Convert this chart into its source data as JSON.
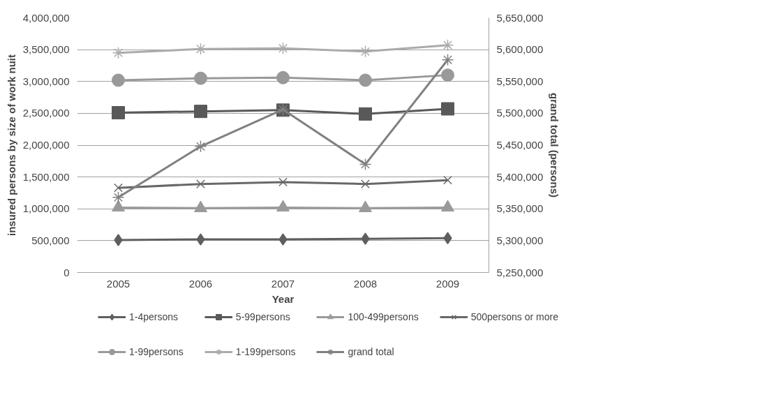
{
  "chart_data": {
    "type": "line",
    "xlabel": "Year",
    "ylabel": "insured persons by size of work nuit",
    "y2label": "grand total (persons)",
    "categories": [
      "2005",
      "2006",
      "2007",
      "2008",
      "2009"
    ],
    "series": [
      {
        "name": "1-4persons",
        "color": "#5f5f5f",
        "marker": "diamond",
        "values": [
          510000,
          520000,
          520000,
          530000,
          540000
        ]
      },
      {
        "name": "5-99persons",
        "color": "#595959",
        "marker": "square",
        "values": [
          2510000,
          2530000,
          2550000,
          2490000,
          2570000
        ]
      },
      {
        "name": "100-499persons",
        "color": "#9a9a9a",
        "marker": "triangle",
        "values": [
          1020000,
          1010000,
          1020000,
          1010000,
          1020000
        ]
      },
      {
        "name": "500persons or more",
        "color": "#686868",
        "marker": "x",
        "values": [
          1330000,
          1390000,
          1420000,
          1390000,
          1450000
        ]
      },
      {
        "name": "1-99persons",
        "color": "#999999",
        "marker": "circle",
        "values": [
          3020000,
          3050000,
          3060000,
          3020000,
          3100000
        ]
      },
      {
        "name": "1-199persons",
        "color": "#ababab",
        "marker": "cross",
        "values": [
          3450000,
          3510000,
          3520000,
          3470000,
          3570000
        ]
      },
      {
        "name": "grand total",
        "color": "#808080",
        "marker": "cross",
        "axis": "y2",
        "values": [
          5368000,
          5448000,
          5506000,
          5420000,
          5584000
        ]
      }
    ],
    "ylim": [
      0,
      4000000
    ],
    "yticks": [
      {
        "value": 0,
        "label": "0"
      },
      {
        "value": 500000,
        "label": "500,000"
      },
      {
        "value": 1000000,
        "label": "1,000,000"
      },
      {
        "value": 1500000,
        "label": "1,500,000"
      },
      {
        "value": 2000000,
        "label": "2,000,000"
      },
      {
        "value": 2500000,
        "label": "2,500,000"
      },
      {
        "value": 3000000,
        "label": "3,000,000"
      },
      {
        "value": 3500000,
        "label": "3,500,000"
      },
      {
        "value": 4000000,
        "label": "4,000,000"
      }
    ],
    "y2lim": [
      5250000,
      5650000
    ],
    "y2ticks": [
      {
        "value": 5250000,
        "label": "5,250,000"
      },
      {
        "value": 5300000,
        "label": "5,300,000"
      },
      {
        "value": 5350000,
        "label": "5,350,000"
      },
      {
        "value": 5400000,
        "label": "5,400,000"
      },
      {
        "value": 5450000,
        "label": "5,450,000"
      },
      {
        "value": 5500000,
        "label": "5,500,000"
      },
      {
        "value": 5550000,
        "label": "5,550,000"
      },
      {
        "value": 5600000,
        "label": "5,600,000"
      },
      {
        "value": 5650000,
        "label": "5,650,000"
      }
    ],
    "grid": "y",
    "legend": "bottom",
    "line_style": "solid"
  }
}
